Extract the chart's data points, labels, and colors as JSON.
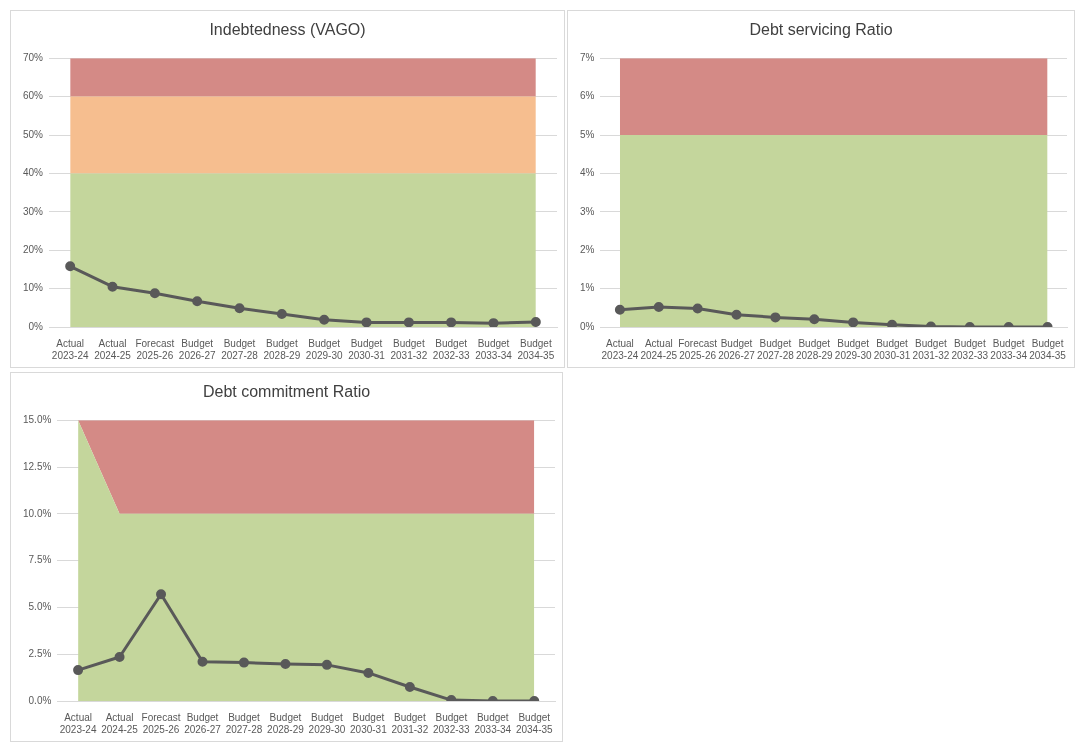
{
  "chart_data": [
    {
      "type": "line",
      "title": "Indebtedness (VAGO)",
      "categories": [
        "Actual\n2023-24",
        "Actual\n2024-25",
        "Forecast\n2025-26",
        "Budget\n2026-27",
        "Budget\n2027-28",
        "Budget\n2028-29",
        "Budget\n2029-30",
        "Budget\n2030-31",
        "Budget\n2031-32",
        "Budget\n2032-33",
        "Budget\n2033-34",
        "Budget\n2034-35"
      ],
      "stacked": true,
      "ylim": [
        0,
        70
      ],
      "yticks": [
        {
          "value": 0,
          "label": "0%"
        },
        {
          "value": 10,
          "label": "10%"
        },
        {
          "value": 20,
          "label": "20%"
        },
        {
          "value": 30,
          "label": "30%"
        },
        {
          "value": 40,
          "label": "40%"
        },
        {
          "value": 50,
          "label": "50%"
        },
        {
          "value": 60,
          "label": "60%"
        },
        {
          "value": 70,
          "label": "70%"
        }
      ],
      "grid": "y",
      "legend": false,
      "line_style": "solid",
      "series": [
        {
          "type": "area",
          "color": "#c4d69c",
          "values": [
            40,
            40,
            40,
            40,
            40,
            40,
            40,
            40,
            40,
            40,
            40,
            40
          ]
        },
        {
          "type": "area",
          "color": "#f6be8f",
          "values": [
            20,
            20,
            20,
            20,
            20,
            20,
            20,
            20,
            20,
            20,
            20,
            20
          ]
        },
        {
          "type": "area",
          "color": "#d48a86",
          "values": [
            10,
            10,
            10,
            10,
            10,
            10,
            10,
            10,
            10,
            10,
            10,
            10
          ]
        },
        {
          "marker": "circle",
          "color": "#595959",
          "values": [
            15.8,
            10.5,
            8.8,
            6.7,
            4.9,
            3.4,
            1.9,
            1.2,
            1.2,
            1.2,
            1.0,
            1.3
          ]
        }
      ]
    },
    {
      "type": "line",
      "title": "Debt servicing Ratio",
      "categories": [
        "Actual\n2023-24",
        "Actual\n2024-25",
        "Forecast\n2025-26",
        "Budget\n2026-27",
        "Budget\n2027-28",
        "Budget\n2028-29",
        "Budget\n2029-30",
        "Budget\n2030-31",
        "Budget\n2031-32",
        "Budget\n2032-33",
        "Budget\n2033-34",
        "Budget\n2034-35"
      ],
      "stacked": true,
      "ylim": [
        0,
        7
      ],
      "yticks": [
        {
          "value": 0,
          "label": "0%"
        },
        {
          "value": 1,
          "label": "1%"
        },
        {
          "value": 2,
          "label": "2%"
        },
        {
          "value": 3,
          "label": "3%"
        },
        {
          "value": 4,
          "label": "4%"
        },
        {
          "value": 5,
          "label": "5%"
        },
        {
          "value": 6,
          "label": "6%"
        },
        {
          "value": 7,
          "label": "7%"
        }
      ],
      "grid": "y",
      "legend": false,
      "line_style": "solid",
      "series": [
        {
          "type": "area",
          "color": "#c4d69c",
          "values": [
            5,
            5,
            5,
            5,
            5,
            5,
            5,
            5,
            5,
            5,
            5,
            5
          ]
        },
        {
          "type": "area",
          "color": "#d48a86",
          "values": [
            2,
            2,
            2,
            2,
            2,
            2,
            2,
            2,
            2,
            2,
            2,
            2
          ]
        },
        {
          "marker": "circle",
          "color": "#595959",
          "values": [
            0.45,
            0.52,
            0.48,
            0.32,
            0.25,
            0.2,
            0.12,
            0.06,
            0.01,
            0,
            0,
            0
          ]
        }
      ]
    },
    {
      "type": "line",
      "title": "Debt commitment Ratio",
      "categories": [
        "Actual\n2023-24",
        "Actual\n2024-25",
        "Forecast\n2025-26",
        "Budget\n2026-27",
        "Budget\n2027-28",
        "Budget\n2028-29",
        "Budget\n2029-30",
        "Budget\n2030-31",
        "Budget\n2031-32",
        "Budget\n2032-33",
        "Budget\n2033-34",
        "Budget\n2034-35"
      ],
      "stacked": true,
      "ylim": [
        0,
        15
      ],
      "yticks": [
        {
          "value": 0,
          "label": "0.0%"
        },
        {
          "value": 2.5,
          "label": "2.5%"
        },
        {
          "value": 5,
          "label": "5.0%"
        },
        {
          "value": 7.5,
          "label": "7.5%"
        },
        {
          "value": 10,
          "label": "10.0%"
        },
        {
          "value": 12.5,
          "label": "12.5%"
        },
        {
          "value": 15,
          "label": "15.0%"
        }
      ],
      "grid": "y",
      "legend": false,
      "line_style": "solid",
      "series": [
        {
          "type": "area",
          "color": "#c4d69c",
          "values": [
            15,
            10,
            10,
            10,
            10,
            10,
            10,
            10,
            10,
            10,
            10,
            10
          ]
        },
        {
          "type": "area",
          "color": "#d48a86",
          "values": [
            0,
            5,
            5,
            5,
            5,
            5,
            5,
            5,
            5,
            5,
            5,
            5
          ]
        },
        {
          "marker": "circle",
          "color": "#595959",
          "values": [
            1.65,
            2.35,
            5.7,
            2.1,
            2.05,
            1.98,
            1.93,
            1.5,
            0.75,
            0.05,
            0,
            0
          ]
        }
      ]
    }
  ]
}
